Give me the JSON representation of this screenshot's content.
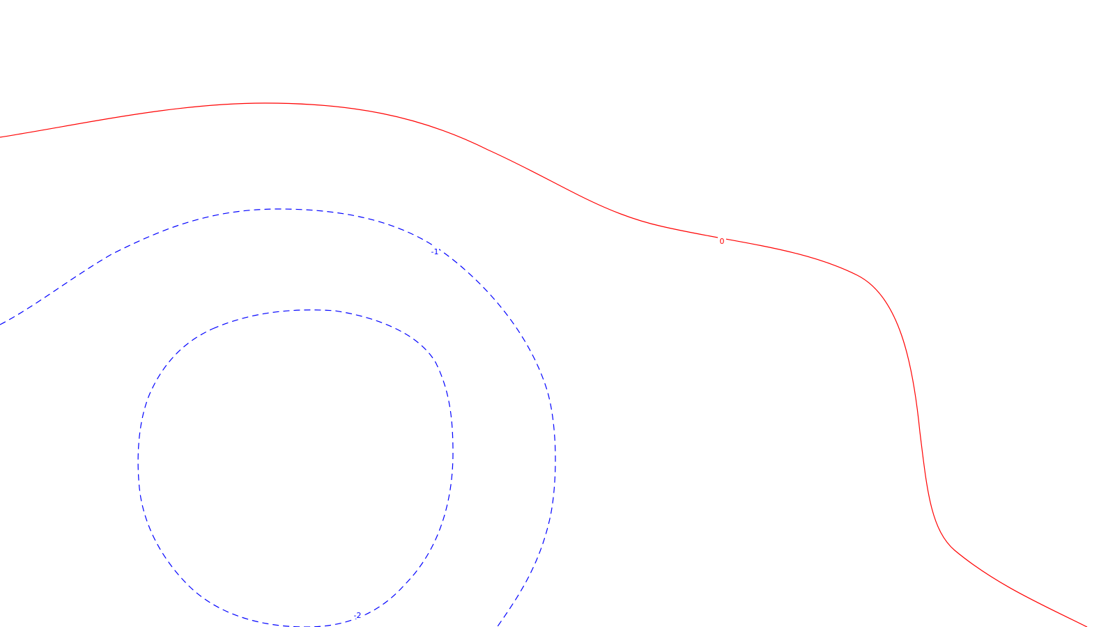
{
  "contour_plot": {
    "background": "#ffffff",
    "contours": [
      {
        "id": "zero",
        "label": "0",
        "color": "#ff0000",
        "style": "solid"
      },
      {
        "id": "minus-1",
        "label": "-1",
        "color": "#0000ff",
        "style": "dashed"
      },
      {
        "id": "minus-2",
        "label": "-2",
        "color": "#0000ff",
        "style": "dashed"
      }
    ]
  }
}
